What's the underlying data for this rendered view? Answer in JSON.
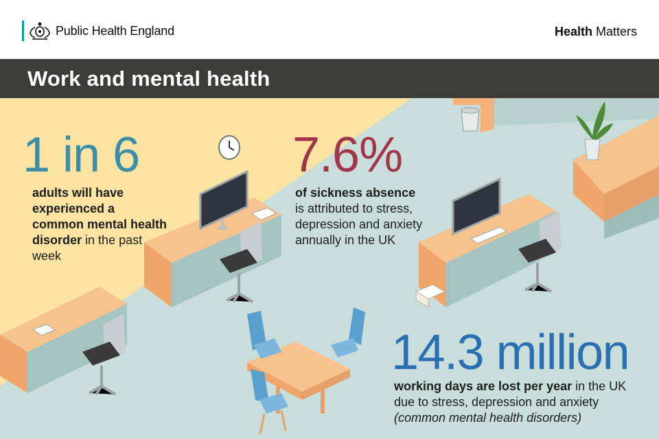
{
  "header": {
    "org_name": "Public Health England",
    "brand_bold": "Health",
    "brand_rest": "Matters",
    "crest_icon": "royal-crest-icon",
    "accent_color": "#00a499"
  },
  "title": "Work and mental health",
  "stats": [
    {
      "figure": "1 in 6",
      "bold_text": "adults will have experienced a common mental health disorder",
      "rest_text": "in the past week",
      "color": "#3a8ea8"
    },
    {
      "figure": "7.6%",
      "bold_text": "of sickness absence",
      "rest_text": "is attributed to stress, depression and anxiety annually in the UK",
      "color": "#a3354a"
    },
    {
      "figure": "14.3 million",
      "bold_text": "working days are lost per year",
      "rest_text": "in the UK due to stress, depression and anxiety",
      "italic_text": "(common mental health disorders)",
      "color": "#2a6fb2"
    }
  ],
  "illustration": {
    "icons": [
      "office-desk-icon",
      "office-chair-icon",
      "computer-monitor-icon",
      "wall-clock-icon",
      "waste-bin-icon",
      "potted-plant-icon",
      "meeting-table-icon",
      "paper-stack-icon"
    ]
  }
}
